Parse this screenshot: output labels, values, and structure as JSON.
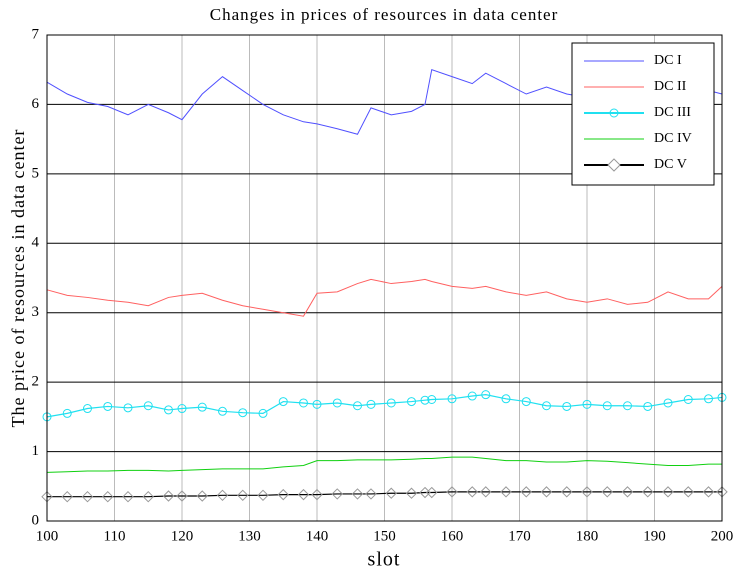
{
  "chart_data": {
    "type": "line",
    "title": "Changes in prices of resources in data center",
    "x_label": "slot",
    "y_label": "The price of resources in data center",
    "x": [
      100,
      103,
      106,
      109,
      112,
      115,
      118,
      120,
      123,
      126,
      129,
      132,
      135,
      138,
      140,
      143,
      146,
      148,
      151,
      154,
      156,
      157,
      160,
      163,
      165,
      168,
      171,
      174,
      177,
      180,
      183,
      186,
      189,
      192,
      195,
      198,
      200
    ],
    "series": [
      {
        "name": "DC I",
        "color": "#5050ff",
        "values": [
          6.32,
          6.15,
          6.03,
          5.97,
          5.85,
          6.0,
          5.88,
          5.78,
          6.15,
          6.4,
          6.2,
          6.0,
          5.85,
          5.75,
          5.72,
          5.65,
          5.57,
          5.95,
          5.85,
          5.9,
          6.0,
          6.5,
          6.4,
          6.3,
          6.45,
          6.3,
          6.15,
          6.25,
          6.15,
          6.1,
          6.15,
          6.2,
          6.25,
          6.3,
          6.25,
          6.2,
          6.15
        ]
      },
      {
        "name": "DC II",
        "color": "#ff6060",
        "values": [
          3.33,
          3.25,
          3.22,
          3.18,
          3.15,
          3.1,
          3.22,
          3.25,
          3.28,
          3.18,
          3.1,
          3.05,
          3.0,
          2.95,
          3.28,
          3.3,
          3.42,
          3.48,
          3.42,
          3.45,
          3.48,
          3.45,
          3.38,
          3.35,
          3.38,
          3.3,
          3.25,
          3.3,
          3.2,
          3.15,
          3.2,
          3.12,
          3.15,
          3.3,
          3.2,
          3.2,
          3.38
        ]
      },
      {
        "name": "DC III",
        "color": "#20e0f0",
        "marker": "circle",
        "values": [
          1.5,
          1.55,
          1.62,
          1.65,
          1.63,
          1.66,
          1.6,
          1.62,
          1.64,
          1.58,
          1.56,
          1.55,
          1.72,
          1.7,
          1.68,
          1.7,
          1.66,
          1.68,
          1.7,
          1.72,
          1.74,
          1.75,
          1.76,
          1.8,
          1.82,
          1.76,
          1.72,
          1.66,
          1.65,
          1.68,
          1.66,
          1.66,
          1.65,
          1.7,
          1.75,
          1.76,
          1.78
        ]
      },
      {
        "name": "DC IV",
        "color": "#10d010",
        "values": [
          0.7,
          0.71,
          0.72,
          0.72,
          0.73,
          0.73,
          0.72,
          0.73,
          0.74,
          0.75,
          0.75,
          0.75,
          0.78,
          0.8,
          0.87,
          0.87,
          0.88,
          0.88,
          0.88,
          0.89,
          0.9,
          0.9,
          0.92,
          0.92,
          0.9,
          0.87,
          0.87,
          0.85,
          0.85,
          0.87,
          0.86,
          0.84,
          0.82,
          0.8,
          0.8,
          0.82,
          0.82
        ]
      },
      {
        "name": "DC V",
        "color": "#000000",
        "marker": "diamond",
        "values": [
          0.35,
          0.35,
          0.35,
          0.35,
          0.35,
          0.35,
          0.36,
          0.36,
          0.36,
          0.37,
          0.37,
          0.37,
          0.38,
          0.38,
          0.38,
          0.39,
          0.39,
          0.39,
          0.4,
          0.4,
          0.41,
          0.41,
          0.42,
          0.42,
          0.42,
          0.42,
          0.42,
          0.42,
          0.42,
          0.42,
          0.42,
          0.42,
          0.42,
          0.42,
          0.42,
          0.42,
          0.42
        ]
      }
    ],
    "xlim": [
      100,
      200
    ],
    "xticks": [
      100,
      110,
      120,
      130,
      140,
      150,
      160,
      170,
      180,
      190,
      200
    ],
    "ylim": [
      0,
      7
    ],
    "yticks": [
      0,
      1,
      2,
      3,
      4,
      5,
      6,
      7
    ],
    "grid": true,
    "legend": "upper right"
  }
}
